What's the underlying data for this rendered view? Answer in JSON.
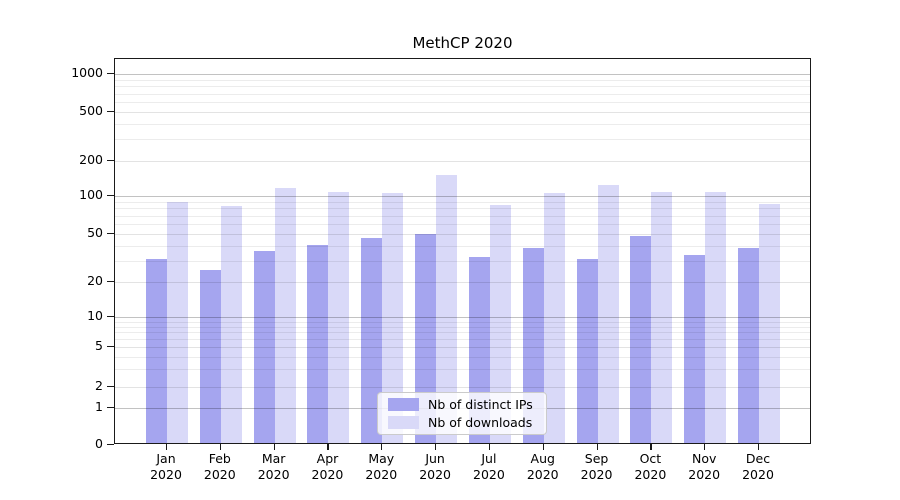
{
  "title": "MethCP 2020",
  "y_axis": {
    "tick_labels": [
      "0",
      "1",
      "2",
      "5",
      "10",
      "20",
      "50",
      "100",
      "200",
      "500",
      "1000"
    ]
  },
  "x_axis": {
    "months": [
      "Jan",
      "Feb",
      "Mar",
      "Apr",
      "May",
      "Jun",
      "Jul",
      "Aug",
      "Sep",
      "Oct",
      "Nov",
      "Dec"
    ],
    "year": "2020"
  },
  "legend": {
    "items": [
      {
        "label": "Nb of distinct IPs",
        "color": "#a5a5ef"
      },
      {
        "label": "Nb of downloads",
        "color": "#d9d9f8"
      }
    ]
  },
  "colors": {
    "bar_distinct_ips": "#a5a5ef",
    "bar_downloads": "#d9d9f8",
    "major_gridline": "#c7c7c7",
    "minor_gridline": "#eaeaea",
    "axis": "#1a1a1a"
  },
  "chart_data": {
    "type": "bar",
    "title": "MethCP 2020",
    "categories": [
      "Jan 2020",
      "Feb 2020",
      "Mar 2020",
      "Apr 2020",
      "May 2020",
      "Jun 2020",
      "Jul 2020",
      "Aug 2020",
      "Sep 2020",
      "Oct 2020",
      "Nov 2020",
      "Dec 2020"
    ],
    "series": [
      {
        "name": "Nb of distinct IPs",
        "color": "#a5a5ef",
        "values": [
          30,
          24,
          35,
          39,
          45,
          48,
          31,
          37,
          30,
          46,
          32,
          37
        ]
      },
      {
        "name": "Nb of downloads",
        "color": "#d9d9f8",
        "values": [
          87,
          81,
          113,
          105,
          103,
          145,
          82,
          103,
          119,
          105,
          105,
          84
        ]
      }
    ],
    "yscale": "log-like (0,1,2,5,10,20,50,100,200,500,1000 ticks)",
    "yticks": [
      0,
      1,
      2,
      5,
      10,
      20,
      50,
      100,
      200,
      500,
      1000
    ],
    "ylim": [
      0,
      1400
    ],
    "xlabel": "",
    "ylabel": "",
    "grid": true,
    "legend_position": "lower center"
  }
}
